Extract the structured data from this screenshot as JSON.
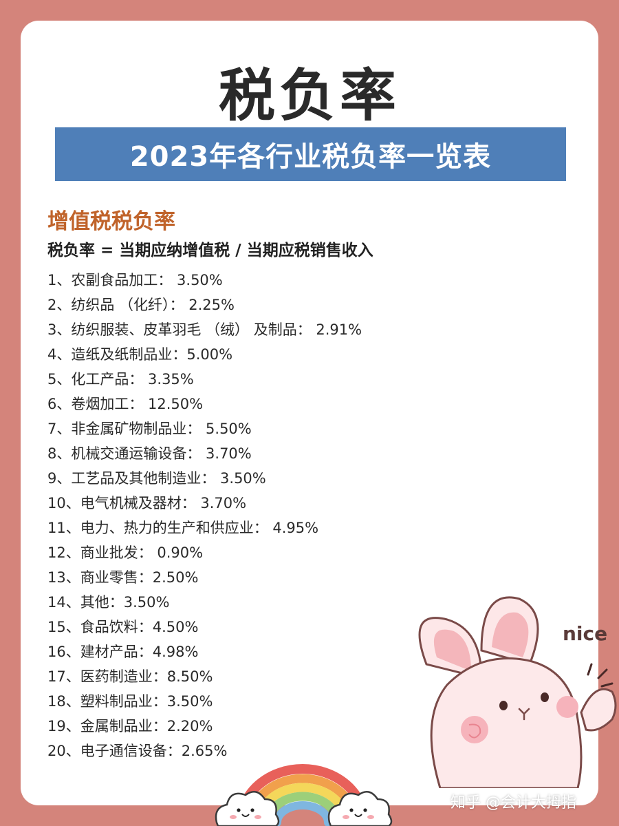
{
  "title": "税负率",
  "banner": "2023年各行业税负率一览表",
  "section_title": "增值税税负率",
  "formula": "税负率 = 当期应纳增值税 / 当期应税销售收入",
  "items": [
    "1、农副食品加工： 3.50%",
    "2、纺织品 （化纤）： 2.25%",
    "3、纺织服装、皮革羽毛 （绒） 及制品： 2.91%",
    "4、造纸及纸制品业：5.00%",
    "5、化工产品： 3.35%",
    "6、卷烟加工： 12.50%",
    "7、非金属矿物制品业： 5.50%",
    "8、机械交通运输设备： 3.70%",
    "9、工艺品及其他制造业： 3.50%",
    "10、电气机械及器材： 3.70%",
    "11、电力、热力的生产和供应业： 4.95%",
    "12、商业批发： 0.90%",
    "13、商业零售：2.50%",
    "14、其他：3.50%",
    "15、食品饮料：4.50%",
    "16、建材产品：4.98%",
    "17、医药制造业：8.50%",
    "18、塑料制品业：3.50%",
    "19、金属制品业：2.20%",
    "20、电子通信设备：2.65%"
  ],
  "decor": {
    "bunny_text": "nice"
  },
  "watermark": "知乎 @会计大拇指",
  "colors": {
    "background": "#d4847b",
    "banner": "#4f7fb8",
    "section_title": "#c0632a"
  }
}
